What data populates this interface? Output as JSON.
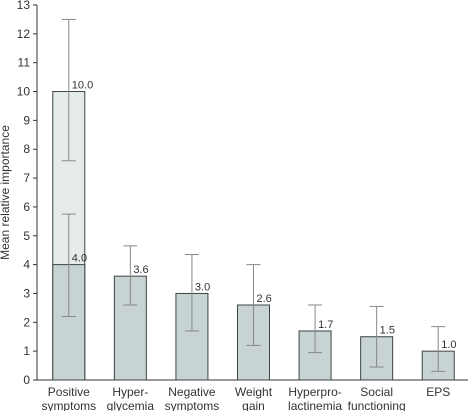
{
  "chart_data": {
    "type": "bar",
    "title": "",
    "xlabel": "",
    "ylabel": "Mean relative importance",
    "ylim": [
      0,
      13
    ],
    "yticks": [
      0,
      1,
      2,
      3,
      4,
      5,
      6,
      7,
      8,
      9,
      10,
      11,
      12,
      13
    ],
    "grid": false,
    "legend": "none",
    "categories": [
      [
        "Positive",
        "symptoms"
      ],
      [
        "Hyper-",
        "glycemia"
      ],
      [
        "Negative",
        "symptoms"
      ],
      [
        "Weight",
        "gain"
      ],
      [
        "Hyperpro-",
        "lactinemia"
      ],
      [
        "Social",
        "functioning"
      ],
      [
        "EPS"
      ]
    ],
    "values": [
      10.0,
      3.6,
      3.0,
      2.6,
      1.7,
      1.5,
      1.0
    ],
    "value_labels": [
      "10.0",
      "3.6",
      "3.0",
      "2.6",
      "1.7",
      "1.5",
      "1.0"
    ],
    "error_bars": [
      {
        "low": 7.6,
        "high": 12.5
      },
      {
        "low": 2.6,
        "high": 4.65
      },
      {
        "low": 1.7,
        "high": 4.35
      },
      {
        "low": 1.2,
        "high": 4.0
      },
      {
        "low": 0.95,
        "high": 2.6
      },
      {
        "low": 0.45,
        "high": 2.55
      },
      {
        "low": 0.3,
        "high": 1.85
      }
    ],
    "inner_bar": {
      "index": 0,
      "value": 4.0,
      "label": "4.0",
      "error_low": 2.2,
      "error_high": 5.75
    },
    "colors": {
      "bar_fill": "#c7d4d3",
      "bar_light_fill": "#e6ecec",
      "bar_stroke": "#3c4446",
      "error_bar": "#888888",
      "axis": "#333333",
      "text": "#333333"
    }
  }
}
